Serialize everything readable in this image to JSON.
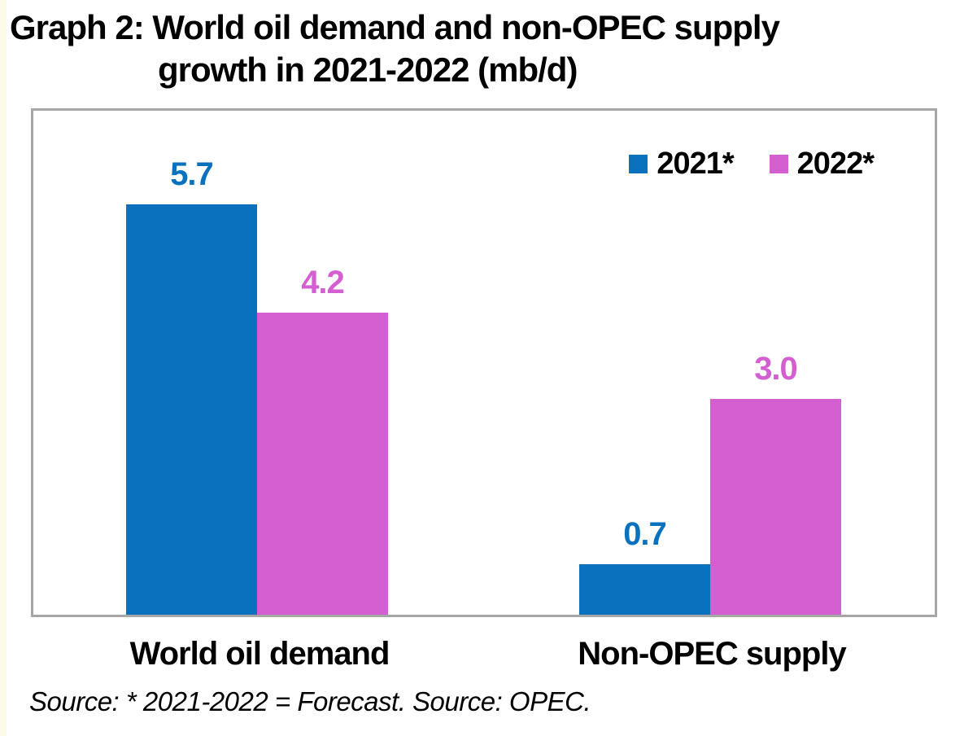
{
  "page": {
    "background_color": "#ffffff",
    "left_strip_color": "#fbfbe8"
  },
  "title": {
    "line1": "Graph 2: World oil demand and non-OPEC supply",
    "line2": "growth in 2021-2022 (mb/d)"
  },
  "source_note": "Source: * 2021-2022 = Forecast. Source: OPEC.",
  "chart_data": {
    "type": "bar",
    "title": "Graph 2: World oil demand and non-OPEC supply growth in 2021-2022 (mb/d)",
    "unit": "mb/d",
    "categories": [
      "World oil demand",
      "Non-OPEC supply"
    ],
    "series": [
      {
        "name": "2021*",
        "color": "#0a71be",
        "values": [
          5.7,
          0.7
        ]
      },
      {
        "name": "2022*",
        "color": "#d35fd0",
        "values": [
          4.2,
          3.0
        ]
      }
    ],
    "ylim": [
      0,
      7
    ],
    "grid": false,
    "axes_visible": false,
    "legend_position": "top-right",
    "data_labels": true,
    "frame_color": "#a6a6a6"
  }
}
